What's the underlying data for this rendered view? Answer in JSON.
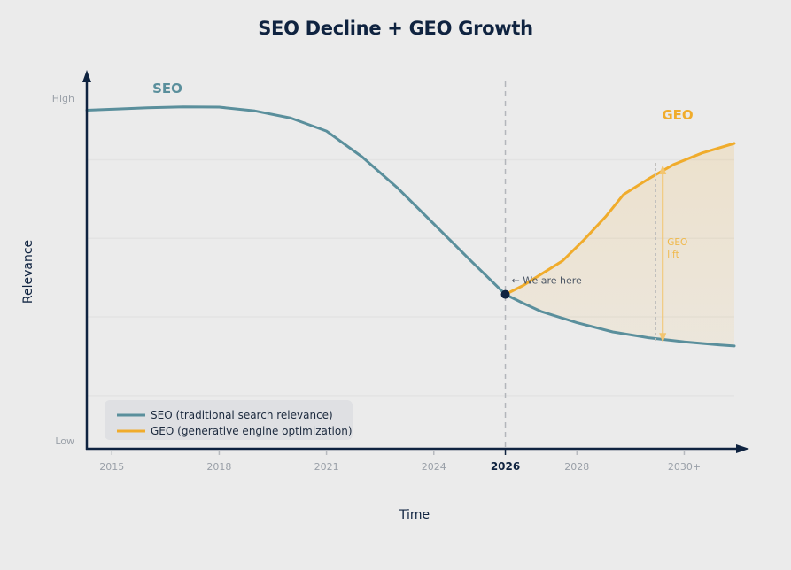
{
  "chart_data": {
    "type": "line",
    "title": "SEO Decline + GEO Growth",
    "xlabel": "Time",
    "ylabel": "Relevance",
    "x_ticks": [
      {
        "label": "2015",
        "value": 2015,
        "emphasis": false
      },
      {
        "label": "2018",
        "value": 2018,
        "emphasis": false
      },
      {
        "label": "2021",
        "value": 2021,
        "emphasis": false
      },
      {
        "label": "2024",
        "value": 2024,
        "emphasis": false
      },
      {
        "label": "2026",
        "value": 2026,
        "emphasis": true
      },
      {
        "label": "2028",
        "value": 2028,
        "emphasis": false
      },
      {
        "label": "2030+",
        "value": 2031,
        "emphasis": false
      }
    ],
    "xlim": [
      2014.3,
      2032.4
    ],
    "y_levels": {
      "high": "High",
      "low": "Low"
    },
    "ylim": [
      0,
      100
    ],
    "grid": "horizontal",
    "series": [
      {
        "name": "SEO",
        "legend": "SEO (traditional search relevance)",
        "color": "#5a8f9c",
        "points": [
          [
            2014.3,
            96.5
          ],
          [
            2015,
            96.8
          ],
          [
            2016,
            97.2
          ],
          [
            2017,
            97.5
          ],
          [
            2018,
            97.4
          ],
          [
            2019,
            96.3
          ],
          [
            2020,
            94.2
          ],
          [
            2021,
            90.4
          ],
          [
            2022,
            82.8
          ],
          [
            2023,
            73.6
          ],
          [
            2024,
            63.2
          ],
          [
            2025,
            52.8
          ],
          [
            2026,
            42.6
          ],
          [
            2026.5,
            40.0
          ],
          [
            2027,
            37.6
          ],
          [
            2028,
            34.3
          ],
          [
            2029,
            31.6
          ],
          [
            2030,
            29.9
          ],
          [
            2031,
            28.7
          ],
          [
            2032,
            27.8
          ],
          [
            2032.4,
            27.5
          ]
        ]
      },
      {
        "name": "GEO",
        "legend": "GEO (generative engine optimization)",
        "color": "#f0ac2c",
        "points": [
          [
            2026,
            42.6
          ],
          [
            2026.5,
            45.2
          ],
          [
            2027,
            48.5
          ],
          [
            2027.6,
            52.4
          ],
          [
            2028.2,
            58.6
          ],
          [
            2028.8,
            65.3
          ],
          [
            2029.3,
            71.8
          ],
          [
            2030,
            76.4
          ],
          [
            2030.7,
            80.6
          ],
          [
            2031.5,
            84.0
          ],
          [
            2032.4,
            86.8
          ]
        ]
      }
    ],
    "series_labels": [
      {
        "text": "SEO",
        "series": "SEO"
      },
      {
        "text": "GEO",
        "series": "GEO"
      }
    ],
    "annotations": {
      "marker": {
        "x": 2026,
        "y": 42.6,
        "text": "← We are here"
      },
      "lift": {
        "x": 2030.4,
        "top": 79.0,
        "bottom": 30.0,
        "text_line1": "GEO",
        "text_line2": "lift"
      }
    },
    "legend": {
      "position": "bottom-left",
      "entries": [
        "SEO (traditional search relevance)",
        "GEO (generative engine optimization)"
      ]
    }
  }
}
